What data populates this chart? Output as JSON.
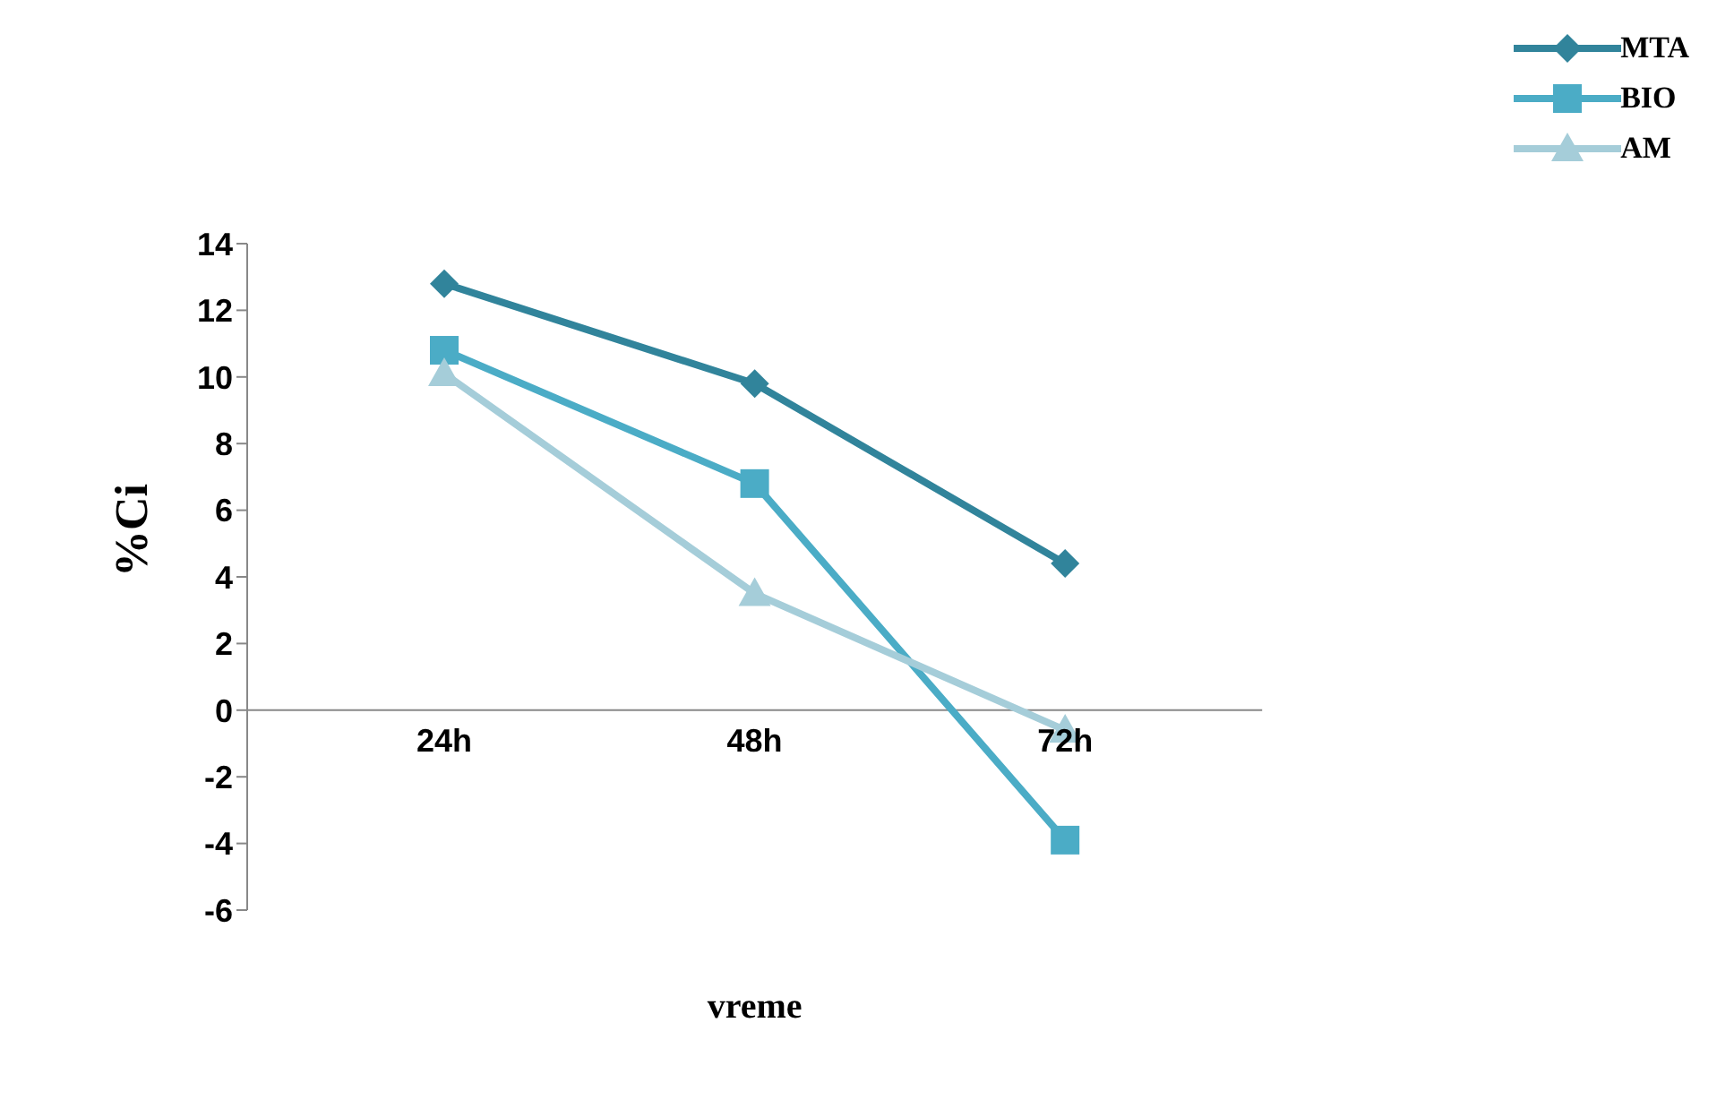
{
  "chart_data": {
    "type": "line",
    "xlabel": "vreme",
    "ylabel": "%Ci",
    "categories": [
      "24h",
      "48h",
      "72h"
    ],
    "series": [
      {
        "name": "MTA",
        "color": "#31849b",
        "marker": "diamond",
        "values": [
          12.8,
          9.8,
          4.4
        ]
      },
      {
        "name": "BIO",
        "color": "#4bacc6",
        "marker": "square",
        "values": [
          10.8,
          6.8,
          -3.9
        ]
      },
      {
        "name": "AM",
        "color": "#a5cdd9",
        "marker": "triangle",
        "values": [
          10.1,
          3.5,
          -0.6
        ]
      }
    ],
    "ylim": [
      -6,
      14
    ],
    "yticks": [
      -6,
      -4,
      -2,
      0,
      2,
      4,
      6,
      8,
      10,
      12,
      14
    ],
    "grid": false,
    "legend": "top right"
  }
}
